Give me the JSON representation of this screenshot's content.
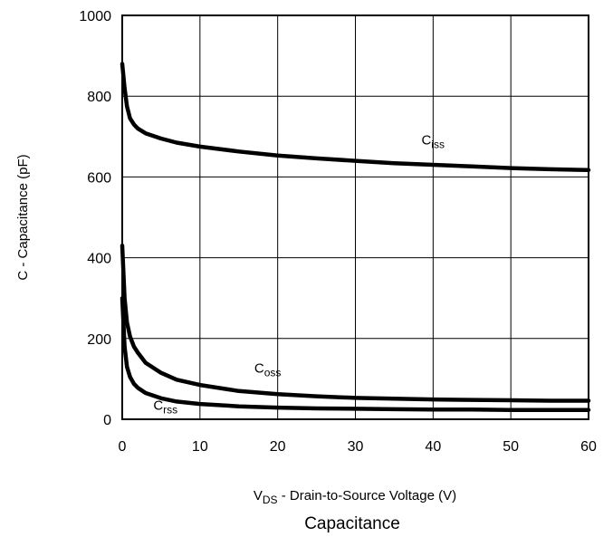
{
  "chart_data": {
    "type": "line",
    "title": "Capacitance",
    "xlabel": {
      "main": "V",
      "sub": "DS",
      "rest": " - Drain-to-Source Voltage (V)"
    },
    "ylabel": "C - Capacitance (pF)",
    "xlim": [
      0,
      60
    ],
    "ylim": [
      0,
      1000
    ],
    "xticks": [
      "0",
      "10",
      "20",
      "30",
      "40",
      "50",
      "60"
    ],
    "yticks": [
      "0",
      "200",
      "400",
      "600",
      "800",
      "1000"
    ],
    "grid": true,
    "series": [
      {
        "name": "Ciss",
        "label_main": "C",
        "label_sub": "iss",
        "x": [
          0,
          0.3,
          0.6,
          1,
          1.5,
          2,
          3,
          5,
          7,
          10,
          15,
          20,
          25,
          30,
          35,
          40,
          45,
          50,
          55,
          60
        ],
        "y": [
          880,
          820,
          775,
          745,
          730,
          720,
          708,
          695,
          685,
          675,
          663,
          653,
          646,
          640,
          634,
          630,
          626,
          622,
          619,
          617
        ]
      },
      {
        "name": "Coss",
        "label_main": "C",
        "label_sub": "oss",
        "x": [
          0,
          0.3,
          0.6,
          1,
          1.5,
          2,
          3,
          5,
          7,
          10,
          15,
          20,
          25,
          30,
          35,
          40,
          45,
          50,
          55,
          60
        ],
        "y": [
          430,
          300,
          240,
          205,
          180,
          165,
          140,
          115,
          98,
          85,
          70,
          62,
          57,
          53,
          51,
          49,
          48,
          47,
          46,
          46
        ]
      },
      {
        "name": "Crss",
        "label_main": "C",
        "label_sub": "rss",
        "x": [
          0,
          0.3,
          0.6,
          1,
          1.5,
          2,
          3,
          5,
          7,
          10,
          15,
          20,
          25,
          30,
          35,
          40,
          45,
          50,
          55,
          60
        ],
        "y": [
          300,
          180,
          130,
          105,
          88,
          78,
          65,
          52,
          44,
          38,
          32,
          29,
          27,
          26,
          25,
          24,
          24,
          23,
          23,
          23
        ]
      }
    ]
  }
}
